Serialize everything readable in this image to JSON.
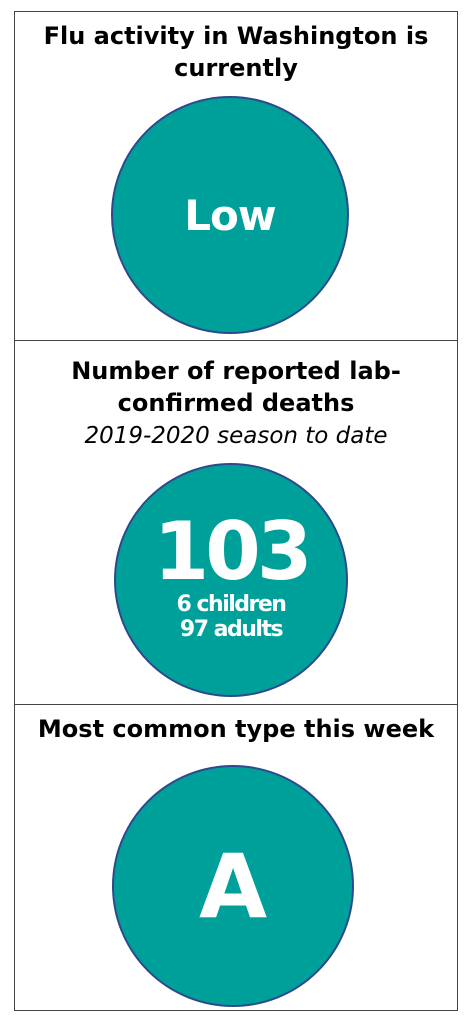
{
  "colors": {
    "circle_fill": "#00a09a",
    "circle_outline": "#2c4a8c",
    "border": "#444444"
  },
  "activity": {
    "heading": "Flu activity in Washington is currently",
    "level": "Low"
  },
  "deaths": {
    "heading": "Number of reported lab-confirmed deaths",
    "subheading": "2019-2020 season to date",
    "total": "103",
    "children": "6 children",
    "adults": "97 adults"
  },
  "type": {
    "heading": "Most common type this week",
    "value": "A"
  }
}
